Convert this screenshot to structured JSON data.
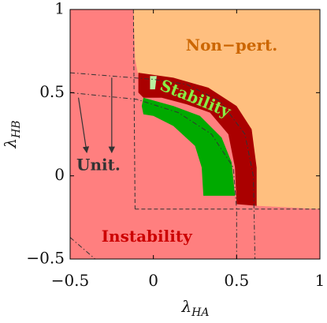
{
  "chart_data": {
    "type": "region",
    "title": "",
    "xlabel": {
      "main": "λ",
      "sub": "HA"
    },
    "ylabel": {
      "main": "λ",
      "sub": "HB"
    },
    "xlim": [
      -0.5,
      1
    ],
    "ylim": [
      -0.5,
      1
    ],
    "xticks": [
      {
        "value": -0.5,
        "label": "−0.5"
      },
      {
        "value": 0,
        "label": "0"
      },
      {
        "value": 0.5,
        "label": "0.5"
      },
      {
        "value": 1,
        "label": "1"
      }
    ],
    "yticks": [
      {
        "value": -0.5,
        "label": "−0.5"
      },
      {
        "value": 0,
        "label": "0"
      },
      {
        "value": 0.5,
        "label": "0.5"
      },
      {
        "value": 1,
        "label": "1"
      }
    ],
    "colors": {
      "instability": "#ff7f7f",
      "non_perturbative": "#ffbf7f",
      "stability_outer": "#aa0000",
      "stability_inner": "#00aa00",
      "light_green": "#b8f0a0",
      "unitarity_text": "#333333",
      "nonpert_text": "#cc6600",
      "instability_text": "#cc0000",
      "stability_text": "#88ee44"
    },
    "regions": [
      {
        "name": "Instability",
        "role": "background"
      },
      {
        "name": "Non-perturbative",
        "role": "upper-right",
        "boundary": [
          [
            -0.12,
            1.0
          ],
          [
            -0.11,
            0.7
          ],
          [
            -0.08,
            0.55
          ],
          [
            0.12,
            0.52
          ],
          [
            0.3,
            0.46
          ],
          [
            0.45,
            0.35
          ],
          [
            0.55,
            0.15
          ],
          [
            0.6,
            -0.05
          ],
          [
            0.62,
            -0.18
          ],
          [
            1.0,
            -0.2
          ],
          [
            1.0,
            1.0
          ]
        ]
      },
      {
        "name": "Stability (outer)",
        "role": "dark-red band",
        "boundary": [
          [
            -0.09,
            0.62
          ],
          [
            0.12,
            0.59
          ],
          [
            0.33,
            0.53
          ],
          [
            0.5,
            0.42
          ],
          [
            0.59,
            0.28
          ],
          [
            0.62,
            0.05
          ],
          [
            0.62,
            -0.18
          ],
          [
            0.5,
            -0.17
          ],
          [
            0.49,
            0.05
          ],
          [
            0.45,
            0.25
          ],
          [
            0.34,
            0.38
          ],
          [
            0.2,
            0.43
          ],
          [
            0.05,
            0.47
          ],
          [
            -0.06,
            0.47
          ],
          [
            -0.09,
            0.5
          ]
        ]
      },
      {
        "name": "Stability (inner)",
        "role": "green band",
        "boundary": [
          [
            -0.06,
            0.47
          ],
          [
            0.12,
            0.42
          ],
          [
            0.28,
            0.36
          ],
          [
            0.41,
            0.23
          ],
          [
            0.47,
            0.08
          ],
          [
            0.49,
            -0.12
          ],
          [
            0.3,
            -0.12
          ],
          [
            0.29,
            0.05
          ],
          [
            0.25,
            0.18
          ],
          [
            0.12,
            0.3
          ],
          [
            0.0,
            0.36
          ],
          [
            -0.06,
            0.37
          ],
          [
            -0.07,
            0.42
          ]
        ]
      },
      {
        "name": "Stability (light)",
        "role": "light-green sliver",
        "boundary": [
          [
            -0.02,
            0.6
          ],
          [
            0.02,
            0.6
          ],
          [
            0.01,
            0.52
          ],
          [
            -0.02,
            0.52
          ]
        ]
      }
    ],
    "lines": [
      {
        "style": "dashed",
        "points": [
          [
            -0.12,
            1.0
          ],
          [
            -0.11,
            -0.2
          ]
        ]
      },
      {
        "style": "dashed",
        "points": [
          [
            -0.11,
            -0.2
          ],
          [
            0.62,
            -0.2
          ],
          [
            1.0,
            -0.2
          ]
        ]
      },
      {
        "style": "dashdot",
        "points": [
          [
            -0.5,
            0.62
          ],
          [
            0.0,
            0.58
          ],
          [
            0.2,
            0.55
          ],
          [
            0.4,
            0.45
          ],
          [
            0.55,
            0.25
          ],
          [
            0.6,
            0.0
          ],
          [
            0.61,
            -0.5
          ]
        ]
      },
      {
        "style": "dashdot",
        "points": [
          [
            -0.5,
            0.5
          ],
          [
            -0.1,
            0.46
          ],
          [
            0.15,
            0.38
          ],
          [
            0.35,
            0.25
          ],
          [
            0.48,
            0.05
          ],
          [
            0.5,
            -0.2
          ],
          [
            0.5,
            -0.5
          ]
        ]
      },
      {
        "style": "dashdot",
        "points": [
          [
            -0.5,
            -0.37
          ],
          [
            -0.35,
            -0.5
          ]
        ]
      }
    ],
    "arrows": [
      {
        "from": [
          -0.45,
          0.47
        ],
        "to": [
          -0.4,
          0.14
        ]
      },
      {
        "from": [
          -0.25,
          0.59
        ],
        "to": [
          -0.25,
          0.14
        ]
      }
    ],
    "annotations": [
      {
        "text": "Non−pert.",
        "x": 0.47,
        "y": 0.78,
        "color_key": "nonpert_text",
        "rotation": 0
      },
      {
        "text": "Stability",
        "x": 0.25,
        "y": 0.46,
        "color_key": "stability_text",
        "rotation": 22
      },
      {
        "text": "Unit.",
        "x": -0.33,
        "y": 0.06,
        "color_key": "unitarity_text",
        "rotation": 0
      },
      {
        "text": "Instability",
        "x": -0.04,
        "y": -0.37,
        "color_key": "instability_text",
        "rotation": 0
      }
    ],
    "grid": false,
    "legend": "none"
  }
}
